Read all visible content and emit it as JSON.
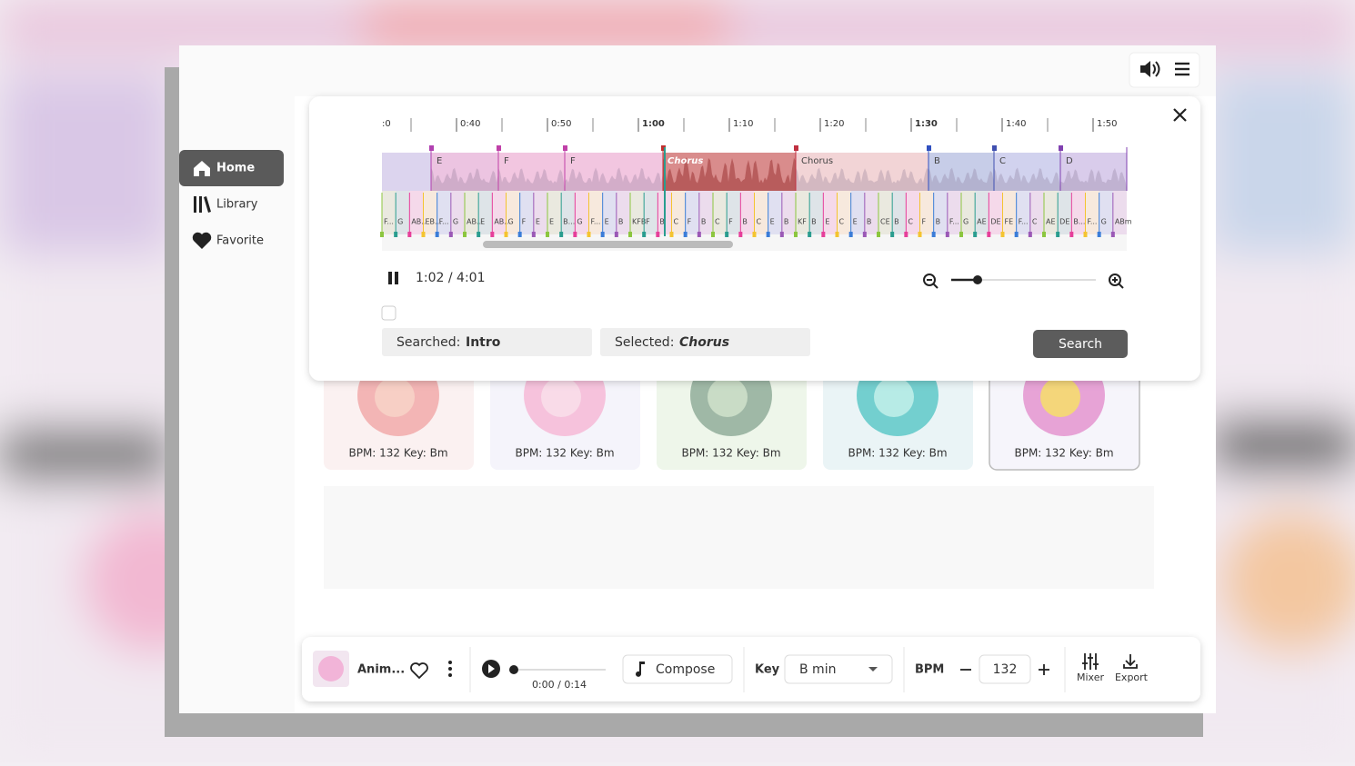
{
  "sidebar": {
    "items": [
      "Home",
      "Library",
      "Favorite"
    ]
  },
  "timeline": {
    "ticks": [
      ":0",
      "0:40",
      "0:50",
      "1:00",
      "1:10",
      "1:20",
      "1:30",
      "1:40",
      "1:50"
    ],
    "sections": [
      "E",
      "F",
      "F",
      "Chorus",
      "Chorus",
      "B",
      "C",
      "D"
    ],
    "chords": [
      "F...",
      "G",
      "AB..",
      "EB...",
      "F...",
      "G",
      "AB...",
      "E",
      "AB...",
      "G",
      "F",
      "E",
      "E",
      "B...",
      "G",
      "F...",
      "E",
      "B",
      "KFB",
      "F",
      "B",
      "C",
      "F",
      "B",
      "C",
      "F",
      "B",
      "C",
      "E",
      "B",
      "KF",
      "B",
      "E",
      "C",
      "E",
      "B",
      "CE",
      "B",
      "C",
      "F",
      "B",
      "F...",
      "G",
      "AE",
      "DE",
      "FE",
      "F...",
      "C",
      "AE",
      "DE",
      "B...",
      "F...",
      "G",
      "ABm"
    ]
  },
  "player": {
    "time": "1:02 / 4:01",
    "searched_label": "Searched:",
    "searched_value": "Intro",
    "selected_label": "Selected:",
    "selected_value": "Chorus",
    "search_button": "Search"
  },
  "cards": [
    "BPM: 132 Key: Bm",
    "BPM: 132 Key: Bm",
    "BPM: 132 Key: Bm",
    "BPM: 132 Key: Bm",
    "BPM: 132 Key: Bm"
  ],
  "bottom_bar": {
    "track": "Anim...",
    "time": "0:00 / 0:14",
    "compose": "Compose",
    "key_label": "Key",
    "key_value": "B min",
    "bpm_label": "BPM",
    "bpm_value": "132",
    "mixer": "Mixer",
    "export": "Export"
  }
}
